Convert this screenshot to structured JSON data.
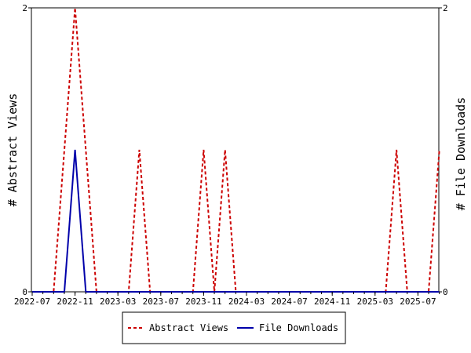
{
  "chart_data": {
    "type": "line",
    "y_left_label": "# Abstract Views",
    "y_right_label": "# File Downloads",
    "y_left_ticks": [
      "0",
      "2"
    ],
    "y_right_ticks": [
      "0",
      "2"
    ],
    "ylim": [
      0,
      2
    ],
    "grid": false,
    "legend_position": "bottom",
    "x_ticks": [
      "2022-07",
      "2022-11",
      "2023-03",
      "2023-07",
      "2023-11",
      "2024-03",
      "2024-07",
      "2024-11",
      "2025-03",
      "2025-07"
    ],
    "months": [
      "2022-07",
      "2022-08",
      "2022-09",
      "2022-10",
      "2022-11",
      "2022-12",
      "2023-01",
      "2023-02",
      "2023-03",
      "2023-04",
      "2023-05",
      "2023-06",
      "2023-07",
      "2023-08",
      "2023-09",
      "2023-10",
      "2023-11",
      "2023-12",
      "2024-01",
      "2024-02",
      "2024-03",
      "2024-04",
      "2024-05",
      "2024-06",
      "2024-07",
      "2024-08",
      "2024-09",
      "2024-10",
      "2024-11",
      "2024-12",
      "2025-01",
      "2025-02",
      "2025-03",
      "2025-04",
      "2025-05",
      "2025-06",
      "2025-07",
      "2025-08",
      "2025-09"
    ],
    "series": [
      {
        "name": "Abstract Views",
        "color": "#cc0000",
        "style": "dashed",
        "values": [
          0,
          0,
          0,
          1,
          2,
          1,
          0,
          0,
          0,
          0,
          1,
          0,
          0,
          0,
          0,
          0,
          1,
          0,
          1,
          0,
          0,
          0,
          0,
          0,
          0,
          0,
          0,
          0,
          0,
          0,
          0,
          0,
          0,
          0,
          1,
          0,
          0,
          0,
          1
        ]
      },
      {
        "name": "File Downloads",
        "color": "#0000aa",
        "style": "solid",
        "values": [
          0,
          0,
          0,
          0,
          1,
          0,
          0,
          0,
          0,
          0,
          0,
          0,
          0,
          0,
          0,
          0,
          0,
          0,
          0,
          0,
          0,
          0,
          0,
          0,
          0,
          0,
          0,
          0,
          0,
          0,
          0,
          0,
          0,
          0,
          0,
          0,
          0,
          0,
          0
        ]
      }
    ]
  }
}
